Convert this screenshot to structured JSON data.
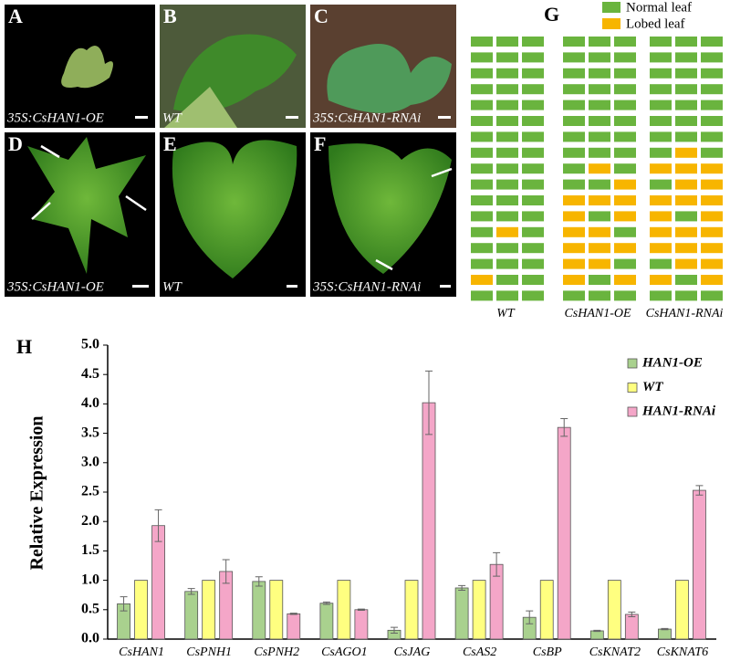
{
  "panels": [
    {
      "label": "A",
      "caption": "35S:CsHAN1-OE"
    },
    {
      "label": "B",
      "caption": "WT"
    },
    {
      "label": "C",
      "caption": "35S:CsHAN1-RNAi"
    },
    {
      "label": "D",
      "caption": "35S:CsHAN1-OE"
    },
    {
      "label": "E",
      "caption": "WT"
    },
    {
      "label": "F",
      "caption": "35S:CsHAN1-RNAi"
    }
  ],
  "leaf_grid": {
    "label": "G",
    "legend": [
      {
        "label": "Normal leaf",
        "color": "#6ab43e"
      },
      {
        "label": "Lobed leaf",
        "color": "#f7b500"
      }
    ],
    "groups": [
      {
        "name": "WT",
        "rows": [
          [
            0,
            0,
            0
          ],
          [
            0,
            0,
            0
          ],
          [
            0,
            0,
            0
          ],
          [
            0,
            0,
            0
          ],
          [
            0,
            0,
            0
          ],
          [
            0,
            0,
            0
          ],
          [
            0,
            0,
            0
          ],
          [
            0,
            0,
            0
          ],
          [
            0,
            0,
            0
          ],
          [
            0,
            0,
            0
          ],
          [
            0,
            0,
            0
          ],
          [
            0,
            0,
            0
          ],
          [
            0,
            1,
            0
          ],
          [
            0,
            0,
            0
          ],
          [
            0,
            0,
            0
          ],
          [
            1,
            0,
            0
          ],
          [
            0,
            0,
            0
          ]
        ]
      },
      {
        "name": "CsHAN1-OE",
        "rows": [
          [
            0,
            0,
            0
          ],
          [
            0,
            0,
            0
          ],
          [
            0,
            0,
            0
          ],
          [
            0,
            0,
            0
          ],
          [
            0,
            0,
            0
          ],
          [
            0,
            0,
            0
          ],
          [
            0,
            0,
            0
          ],
          [
            0,
            0,
            0
          ],
          [
            0,
            1,
            0
          ],
          [
            0,
            0,
            1
          ],
          [
            1,
            1,
            1
          ],
          [
            1,
            0,
            1
          ],
          [
            1,
            1,
            0
          ],
          [
            1,
            1,
            1
          ],
          [
            1,
            1,
            0
          ],
          [
            1,
            0,
            1
          ],
          [
            0,
            0,
            0
          ]
        ]
      },
      {
        "name": "CsHAN1-RNAi",
        "rows": [
          [
            0,
            0,
            0
          ],
          [
            0,
            0,
            0
          ],
          [
            0,
            0,
            0
          ],
          [
            0,
            0,
            0
          ],
          [
            0,
            0,
            0
          ],
          [
            0,
            0,
            0
          ],
          [
            0,
            0,
            0
          ],
          [
            0,
            1,
            0
          ],
          [
            1,
            1,
            1
          ],
          [
            0,
            1,
            1
          ],
          [
            1,
            1,
            1
          ],
          [
            1,
            0,
            1
          ],
          [
            1,
            1,
            1
          ],
          [
            1,
            1,
            1
          ],
          [
            0,
            1,
            1
          ],
          [
            1,
            0,
            1
          ],
          [
            0,
            0,
            0
          ]
        ]
      }
    ]
  },
  "chart_data": {
    "type": "bar",
    "label": "H",
    "y_label": "Relative Expression",
    "categories": [
      "CsHAN1",
      "CsPNH1",
      "CsPNH2",
      "CsAGO1",
      "CsJAG",
      "CsAS2",
      "CsBP",
      "CsKNAT2",
      "CsKNAT6"
    ],
    "series": [
      {
        "name": "HAN1-OE",
        "color": "#a9d18e",
        "values": [
          0.6,
          0.81,
          0.98,
          0.61,
          0.15,
          0.87,
          0.37,
          0.14,
          0.17
        ],
        "errors": [
          0.12,
          0.05,
          0.08,
          0.02,
          0.05,
          0.04,
          0.11,
          0.01,
          0.01
        ]
      },
      {
        "name": "WT",
        "color": "#ffff80",
        "values": [
          1,
          1,
          1,
          1,
          1,
          1,
          1,
          1,
          1
        ],
        "errors": [
          0,
          0,
          0,
          0,
          0,
          0,
          0,
          0,
          0
        ]
      },
      {
        "name": "HAN1-RNAi",
        "color": "#f4a6c8",
        "values": [
          1.93,
          1.15,
          0.43,
          0.5,
          4.02,
          1.27,
          3.6,
          0.42,
          2.53
        ],
        "errors": [
          0.27,
          0.2,
          0.01,
          0.01,
          0.54,
          0.2,
          0.15,
          0.04,
          0.08
        ]
      }
    ],
    "ylim": [
      0,
      5
    ],
    "yticks": [
      {
        "value": 0,
        "label": "0.0"
      },
      {
        "value": 0.5,
        "label": "0.5"
      },
      {
        "value": 1,
        "label": "1.0"
      },
      {
        "value": 1.5,
        "label": "1.5"
      },
      {
        "value": 2,
        "label": "2.0"
      },
      {
        "value": 2.5,
        "label": "2.5"
      },
      {
        "value": 3,
        "label": "3.0"
      },
      {
        "value": 3.5,
        "label": "3.5"
      },
      {
        "value": 4,
        "label": "4.0"
      },
      {
        "value": 4.5,
        "label": "4.5"
      },
      {
        "value": 5,
        "label": "5.0"
      }
    ],
    "legend": "top-right"
  }
}
